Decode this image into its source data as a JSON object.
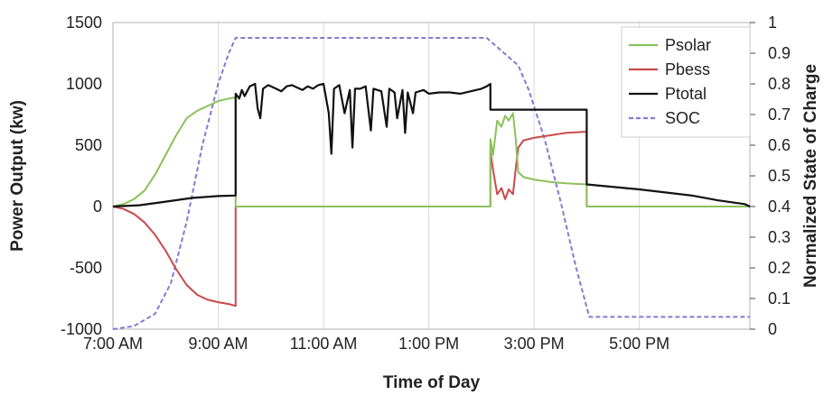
{
  "chart_data": {
    "type": "line",
    "xlabel": "Time of Day",
    "ylabel": "Power Output (kw)",
    "y2label": "Normalized State of Charge",
    "xlim": [
      7,
      19.1
    ],
    "ylim": [
      -1000,
      1500
    ],
    "y2lim": [
      0,
      1
    ],
    "x_ticks": [
      7,
      9,
      11,
      13,
      15,
      17
    ],
    "x_tick_labels": [
      "7:00 AM",
      "9:00 AM",
      "11:00 AM",
      "1:00 PM",
      "3:00 PM",
      "5:00 PM"
    ],
    "y_ticks": [
      -1000,
      -500,
      0,
      500,
      1000,
      1500
    ],
    "y_tick_labels": [
      "-1000",
      "-500",
      "0",
      "500",
      "1000",
      "1500"
    ],
    "y2_ticks": [
      0,
      0.1,
      0.2,
      0.3,
      0.4,
      0.5,
      0.6,
      0.7,
      0.8,
      0.9,
      1
    ],
    "y2_tick_labels": [
      "0",
      "0.1",
      "0.2",
      "0.3",
      "0.4",
      "0.5",
      "0.6",
      "0.7",
      "0.8",
      "0.9",
      "1"
    ],
    "grid": "vertical",
    "legend": {
      "position": "top-right",
      "entries": [
        "Psolar",
        "Pbess",
        "Ptotal",
        "SOC"
      ]
    },
    "series": [
      {
        "name": "Psolar",
        "axis": "left",
        "color": "#8cc15a",
        "dash": "solid",
        "points": [
          [
            7,
            0
          ],
          [
            7.2,
            20
          ],
          [
            7.4,
            60
          ],
          [
            7.6,
            130
          ],
          [
            7.8,
            260
          ],
          [
            8.0,
            420
          ],
          [
            8.2,
            580
          ],
          [
            8.4,
            720
          ],
          [
            8.6,
            780
          ],
          [
            8.8,
            820
          ],
          [
            9.0,
            860
          ],
          [
            9.2,
            880
          ],
          [
            9.33,
            890
          ],
          [
            9.33,
            0
          ],
          [
            14.17,
            0
          ],
          [
            14.17,
            550
          ],
          [
            14.22,
            420
          ],
          [
            14.3,
            700
          ],
          [
            14.38,
            650
          ],
          [
            14.45,
            740
          ],
          [
            14.52,
            700
          ],
          [
            14.6,
            760
          ],
          [
            14.65,
            560
          ],
          [
            14.7,
            280
          ],
          [
            14.8,
            240
          ],
          [
            15.0,
            220
          ],
          [
            15.3,
            200
          ],
          [
            15.6,
            190
          ],
          [
            16.0,
            180
          ],
          [
            16.0,
            0
          ],
          [
            19.1,
            0
          ]
        ]
      },
      {
        "name": "Pbess",
        "axis": "left",
        "color": "#c94a4a",
        "dash": "solid",
        "points": [
          [
            7,
            0
          ],
          [
            7.2,
            -20
          ],
          [
            7.4,
            -60
          ],
          [
            7.6,
            -130
          ],
          [
            7.8,
            -230
          ],
          [
            8.0,
            -360
          ],
          [
            8.2,
            -510
          ],
          [
            8.4,
            -640
          ],
          [
            8.6,
            -720
          ],
          [
            8.8,
            -760
          ],
          [
            9.0,
            -780
          ],
          [
            9.2,
            -795
          ],
          [
            9.33,
            -810
          ],
          [
            9.33,
            0
          ],
          [
            14.17,
            0
          ],
          [
            14.17,
            450
          ],
          [
            14.22,
            300
          ],
          [
            14.3,
            100
          ],
          [
            14.38,
            150
          ],
          [
            14.45,
            60
          ],
          [
            14.52,
            140
          ],
          [
            14.6,
            100
          ],
          [
            14.65,
            300
          ],
          [
            14.7,
            480
          ],
          [
            14.8,
            540
          ],
          [
            15.0,
            560
          ],
          [
            15.3,
            580
          ],
          [
            15.6,
            600
          ],
          [
            16.0,
            610
          ],
          [
            16.0,
            0
          ],
          [
            19.1,
            0
          ]
        ]
      },
      {
        "name": "Ptotal",
        "axis": "left",
        "color": "#111111",
        "dash": "solid",
        "points": [
          [
            7,
            0
          ],
          [
            7.5,
            10
          ],
          [
            8.0,
            40
          ],
          [
            8.5,
            70
          ],
          [
            9.0,
            85
          ],
          [
            9.33,
            90
          ],
          [
            9.33,
            920
          ],
          [
            9.4,
            880
          ],
          [
            9.45,
            950
          ],
          [
            9.5,
            900
          ],
          [
            9.6,
            980
          ],
          [
            9.7,
            1000
          ],
          [
            9.75,
            800
          ],
          [
            9.8,
            720
          ],
          [
            9.85,
            960
          ],
          [
            9.95,
            990
          ],
          [
            10.1,
            960
          ],
          [
            10.2,
            940
          ],
          [
            10.3,
            980
          ],
          [
            10.4,
            990
          ],
          [
            10.5,
            970
          ],
          [
            10.6,
            950
          ],
          [
            10.7,
            980
          ],
          [
            10.8,
            960
          ],
          [
            10.9,
            990
          ],
          [
            11.0,
            1000
          ],
          [
            11.1,
            760
          ],
          [
            11.15,
            430
          ],
          [
            11.2,
            960
          ],
          [
            11.3,
            990
          ],
          [
            11.4,
            760
          ],
          [
            11.5,
            950
          ],
          [
            11.55,
            480
          ],
          [
            11.6,
            960
          ],
          [
            11.7,
            960
          ],
          [
            11.8,
            980
          ],
          [
            11.9,
            620
          ],
          [
            11.95,
            960
          ],
          [
            12.1,
            940
          ],
          [
            12.2,
            650
          ],
          [
            12.25,
            960
          ],
          [
            12.35,
            930
          ],
          [
            12.4,
            720
          ],
          [
            12.5,
            950
          ],
          [
            12.55,
            600
          ],
          [
            12.6,
            930
          ],
          [
            12.7,
            760
          ],
          [
            12.75,
            930
          ],
          [
            12.9,
            950
          ],
          [
            13.0,
            920
          ],
          [
            13.2,
            930
          ],
          [
            13.4,
            930
          ],
          [
            13.6,
            920
          ],
          [
            13.8,
            940
          ],
          [
            14.0,
            960
          ],
          [
            14.1,
            980
          ],
          [
            14.17,
            1000
          ],
          [
            14.17,
            790
          ],
          [
            16.0,
            790
          ],
          [
            16.0,
            180
          ],
          [
            17.0,
            140
          ],
          [
            18.0,
            90
          ],
          [
            18.5,
            50
          ],
          [
            19.0,
            20
          ],
          [
            19.1,
            0
          ]
        ]
      },
      {
        "name": "SOC",
        "axis": "right",
        "color": "#8878d0",
        "dash": "dashed",
        "points": [
          [
            7,
            0
          ],
          [
            7.4,
            0.01
          ],
          [
            7.8,
            0.05
          ],
          [
            8.1,
            0.15
          ],
          [
            8.4,
            0.35
          ],
          [
            8.7,
            0.6
          ],
          [
            9.0,
            0.8
          ],
          [
            9.2,
            0.9
          ],
          [
            9.33,
            0.95
          ],
          [
            14.1,
            0.95
          ],
          [
            14.3,
            0.92
          ],
          [
            14.5,
            0.89
          ],
          [
            14.7,
            0.86
          ],
          [
            14.9,
            0.78
          ],
          [
            15.2,
            0.62
          ],
          [
            15.5,
            0.42
          ],
          [
            15.8,
            0.2
          ],
          [
            16.05,
            0.04
          ],
          [
            19.1,
            0.04
          ]
        ]
      }
    ]
  }
}
